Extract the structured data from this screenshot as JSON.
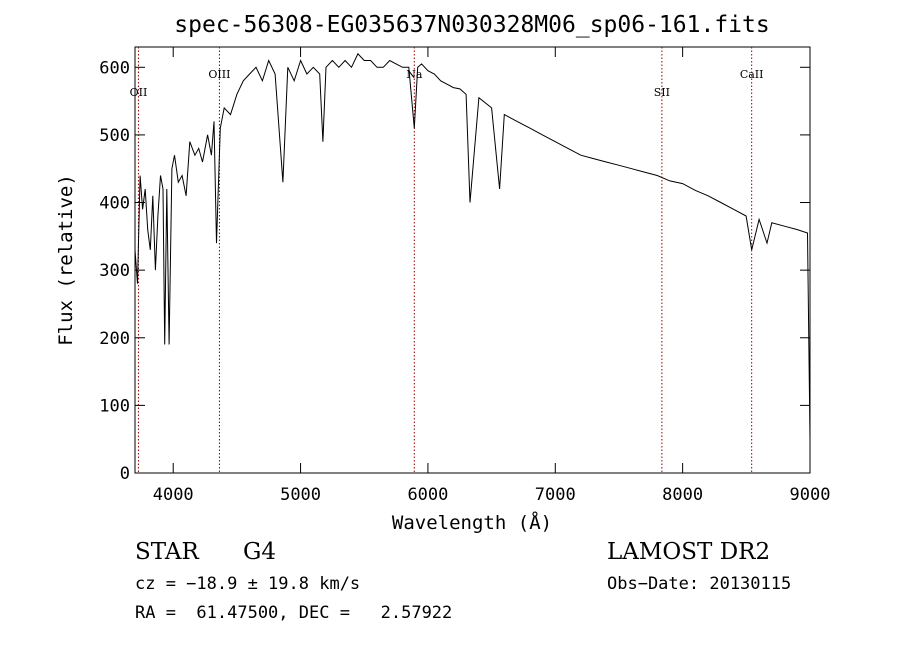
{
  "chart_data": {
    "type": "line",
    "title": "spec-56308-EG035637N030328M06_sp06-161.fits",
    "xlabel": "Wavelength (Å)",
    "ylabel": "Flux (relative)",
    "xlim": [
      3700,
      9000
    ],
    "ylim": [
      0,
      630
    ],
    "x_ticks": [
      4000,
      5000,
      6000,
      7000,
      8000,
      9000
    ],
    "y_ticks": [
      0,
      100,
      200,
      300,
      400,
      500,
      600
    ],
    "grid": false,
    "series": [
      {
        "x": [
          3700,
          3720,
          3740,
          3760,
          3780,
          3800,
          3820,
          3840,
          3860,
          3880,
          3900,
          3920,
          3933,
          3950,
          3968,
          3990,
          4010,
          4040,
          4070,
          4101,
          4130,
          4170,
          4200,
          4230,
          4270,
          4300,
          4320,
          4340,
          4370,
          4400,
          4450,
          4500,
          4550,
          4600,
          4650,
          4700,
          4750,
          4800,
          4861,
          4900,
          4950,
          5000,
          5050,
          5100,
          5150,
          5175,
          5200,
          5250,
          5300,
          5350,
          5400,
          5450,
          5500,
          5550,
          5600,
          5650,
          5700,
          5750,
          5800,
          5850,
          5893,
          5920,
          5950,
          6000,
          6050,
          6100,
          6150,
          6200,
          6250,
          6300,
          6330,
          6400,
          6500,
          6563,
          6600,
          6700,
          6800,
          6900,
          7000,
          7100,
          7200,
          7300,
          7400,
          7500,
          7600,
          7700,
          7800,
          7900,
          8000,
          8100,
          8200,
          8300,
          8400,
          8498,
          8542,
          8600,
          8662,
          8700,
          8800,
          8900,
          8980,
          9000
        ],
        "y": [
          330,
          280,
          440,
          390,
          420,
          360,
          330,
          410,
          300,
          380,
          440,
          420,
          190,
          420,
          190,
          450,
          470,
          430,
          440,
          410,
          490,
          470,
          480,
          460,
          500,
          470,
          520,
          340,
          510,
          540,
          530,
          560,
          580,
          590,
          600,
          580,
          610,
          590,
          430,
          600,
          580,
          610,
          590,
          600,
          590,
          490,
          600,
          610,
          600,
          610,
          600,
          620,
          610,
          610,
          600,
          600,
          610,
          605,
          600,
          600,
          510,
          600,
          605,
          595,
          590,
          580,
          575,
          570,
          568,
          560,
          400,
          555,
          540,
          420,
          530,
          520,
          510,
          500,
          490,
          480,
          470,
          465,
          460,
          455,
          450,
          445,
          440,
          432,
          428,
          418,
          410,
          400,
          390,
          380,
          330,
          375,
          340,
          370,
          365,
          360,
          355,
          50
        ]
      }
    ],
    "lines": [
      {
        "label": "OII",
        "x": 3727
      },
      {
        "label": "OIII",
        "x": 4363
      },
      {
        "label": "Na",
        "x": 5893
      },
      {
        "label": "SII",
        "x": 7837
      },
      {
        "label": "CaII",
        "x": 8542
      }
    ],
    "line_color": "#990000"
  },
  "info": {
    "class_label": "STAR",
    "subclass": "G4",
    "cz": "cz = −18.9 ± 19.8 km/s",
    "coords": "RA =  61.47500, DEC =   2.57922",
    "survey": "LAMOST DR2",
    "obs_date": "Obs−Date: 20130115"
  }
}
